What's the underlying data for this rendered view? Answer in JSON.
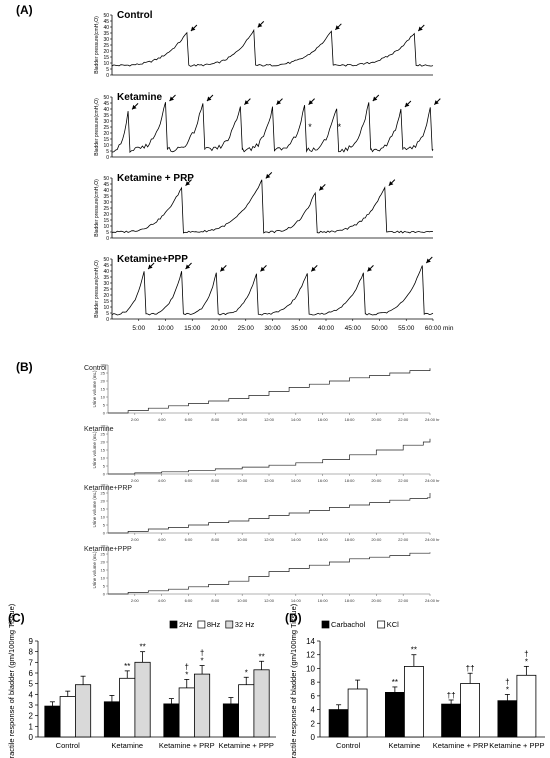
{
  "chart_data": [
    {
      "panel": "(A)",
      "type": "line",
      "x_axis": {
        "unit": "min",
        "ticks": [
          "5:00",
          "10:00",
          "15:00",
          "20:00",
          "25:00",
          "30:00",
          "35:00",
          "40:00",
          "45:00",
          "50:00",
          "55:00",
          "60:00"
        ],
        "tick_values": [
          5,
          10,
          15,
          20,
          25,
          30,
          35,
          40,
          45,
          50,
          55,
          60
        ],
        "range": [
          0,
          60
        ]
      },
      "y_axis": {
        "label": "Bladder pressure(cmH₂O)",
        "ticks": [
          0,
          5,
          10,
          15,
          20,
          25,
          30,
          35,
          40,
          45,
          50
        ],
        "range": [
          0,
          50
        ]
      },
      "series": [
        {
          "name": "Control",
          "peaks": [
            {
              "x": 14,
              "y": 35
            },
            {
              "x": 26.5,
              "y": 38
            },
            {
              "x": 41,
              "y": 36
            },
            {
              "x": 56.5,
              "y": 35
            }
          ],
          "baseline": 8,
          "arrows": [
            14,
            26.5,
            41,
            56.5
          ],
          "stars": []
        },
        {
          "name": "Ketamine",
          "peaks": [
            {
              "x": 3,
              "y": 38
            },
            {
              "x": 10,
              "y": 45
            },
            {
              "x": 17,
              "y": 45
            },
            {
              "x": 24,
              "y": 42
            },
            {
              "x": 30,
              "y": 42
            },
            {
              "x": 36,
              "y": 42
            },
            {
              "x": 42,
              "y": 42
            },
            {
              "x": 48,
              "y": 45
            },
            {
              "x": 54,
              "y": 40
            },
            {
              "x": 59.5,
              "y": 42
            }
          ],
          "baseline": 6,
          "arrows": [
            3,
            10,
            17,
            24,
            30,
            36,
            48,
            54,
            59.5
          ],
          "stars": [
            37,
            42.5
          ]
        },
        {
          "name": "Ketamine + PRP",
          "peaks": [
            {
              "x": 13,
              "y": 42
            },
            {
              "x": 28,
              "y": 48
            },
            {
              "x": 38,
              "y": 38
            },
            {
              "x": 51,
              "y": 42
            }
          ],
          "baseline": 5,
          "arrows": [
            13,
            28,
            38,
            51
          ],
          "stars": []
        },
        {
          "name": "Ketamine+PPP",
          "peaks": [
            {
              "x": 6,
              "y": 40
            },
            {
              "x": 13,
              "y": 40
            },
            {
              "x": 19.5,
              "y": 38
            },
            {
              "x": 27,
              "y": 38
            },
            {
              "x": 36.5,
              "y": 38
            },
            {
              "x": 47,
              "y": 38
            },
            {
              "x": 58,
              "y": 45
            }
          ],
          "baseline": 4,
          "arrows": [
            6,
            13,
            19.5,
            27,
            36.5,
            47,
            58
          ],
          "stars": []
        }
      ]
    },
    {
      "panel": "(B)",
      "type": "line",
      "x_axis": {
        "unit": "hr",
        "ticks": [
          "2:00",
          "4:00",
          "6:00",
          "8:00",
          "10:00",
          "12:00",
          "14:00",
          "16:00",
          "18:00",
          "20:00",
          "22:00",
          "24:00"
        ],
        "tick_values": [
          2,
          4,
          6,
          8,
          10,
          12,
          14,
          16,
          18,
          20,
          22,
          24
        ],
        "range": [
          0,
          24
        ]
      },
      "y_axis": {
        "label": "Urine volume (mL)",
        "ticks": [
          0,
          5,
          10,
          15,
          20,
          25,
          30
        ],
        "range": [
          0,
          30
        ]
      },
      "series": [
        {
          "name": "Control",
          "points": [
            [
              0,
              0
            ],
            [
              1.5,
              1.5
            ],
            [
              3,
              3
            ],
            [
              4.5,
              4.5
            ],
            [
              6,
              6
            ],
            [
              7.5,
              7.5
            ],
            [
              9,
              9
            ],
            [
              10.5,
              11
            ],
            [
              12,
              13.5
            ],
            [
              13.5,
              16
            ],
            [
              15,
              18
            ],
            [
              16.5,
              20
            ],
            [
              18,
              22
            ],
            [
              19.5,
              23.5
            ],
            [
              21,
              25
            ],
            [
              22.5,
              26.5
            ],
            [
              24,
              28
            ]
          ]
        },
        {
          "name": "Ketamine",
          "points": [
            [
              0,
              0
            ],
            [
              2,
              0.7
            ],
            [
              4,
              1.4
            ],
            [
              6,
              2.3
            ],
            [
              8,
              3.2
            ],
            [
              10,
              4.3
            ],
            [
              12,
              5.5
            ],
            [
              14,
              7
            ],
            [
              16,
              9
            ],
            [
              18,
              12
            ],
            [
              20,
              15
            ],
            [
              22,
              18
            ],
            [
              23.5,
              20
            ],
            [
              24,
              22
            ]
          ]
        },
        {
          "name": "Ketamine+PRP",
          "points": [
            [
              0,
              0
            ],
            [
              1.5,
              1
            ],
            [
              3,
              2.5
            ],
            [
              4.5,
              3.5
            ],
            [
              6,
              5
            ],
            [
              7.5,
              6.5
            ],
            [
              9,
              7.5
            ],
            [
              10.5,
              9
            ],
            [
              12,
              11
            ],
            [
              13.5,
              12.5
            ],
            [
              15,
              14
            ],
            [
              16.5,
              16
            ],
            [
              18,
              17.5
            ],
            [
              19.5,
              19
            ],
            [
              21,
              20.5
            ],
            [
              22.5,
              21.5
            ],
            [
              23.8,
              22
            ],
            [
              24,
              25
            ]
          ]
        },
        {
          "name": "Ketamine+PPP",
          "points": [
            [
              0,
              0
            ],
            [
              1.5,
              1
            ],
            [
              3,
              2
            ],
            [
              4.5,
              3
            ],
            [
              6,
              4.5
            ],
            [
              7.5,
              6
            ],
            [
              9,
              8
            ],
            [
              10.5,
              11
            ],
            [
              12,
              14
            ],
            [
              13.5,
              16
            ],
            [
              15,
              18
            ],
            [
              16.5,
              20
            ],
            [
              18,
              22
            ],
            [
              19.5,
              23
            ],
            [
              21,
              24
            ],
            [
              22.5,
              25.5
            ],
            [
              24,
              26
            ]
          ]
        }
      ]
    },
    {
      "panel": "(C)",
      "type": "bar",
      "ylabel": "Contractile response of bladder (gm/100mg Tissue)",
      "ylim": [
        0,
        9
      ],
      "yticks": [
        0,
        1,
        2,
        3,
        4,
        5,
        6,
        7,
        8,
        9
      ],
      "categories": [
        "Control",
        "Ketamine",
        "Ketamine + PRP",
        "Ketamine + PPP"
      ],
      "legend": {
        "placement": "top-right"
      },
      "series": [
        {
          "name": "2Hz",
          "color": "#000000",
          "values": [
            2.9,
            3.3,
            3.1,
            3.1
          ],
          "errors": [
            0.4,
            0.6,
            0.5,
            0.6
          ],
          "marks": [
            "",
            "",
            "",
            ""
          ]
        },
        {
          "name": "8Hz",
          "color": "#ffffff",
          "values": [
            3.8,
            5.5,
            4.6,
            4.9
          ],
          "errors": [
            0.5,
            0.7,
            0.8,
            0.7
          ],
          "marks": [
            "",
            "**",
            "*†",
            "*"
          ]
        },
        {
          "name": "32 Hz",
          "color": "#d9d9d9",
          "values": [
            4.9,
            7.0,
            5.9,
            6.3
          ],
          "errors": [
            0.8,
            1.0,
            0.8,
            0.8
          ],
          "marks": [
            "",
            "**",
            "*†",
            "**"
          ]
        }
      ]
    },
    {
      "panel": "(D)",
      "type": "bar",
      "ylabel": "Contractile response of bladder (gm/100mg Tissue)",
      "ylim": [
        0,
        14
      ],
      "yticks": [
        0,
        2,
        4,
        6,
        8,
        10,
        12,
        14
      ],
      "categories": [
        "Control",
        "Ketamine",
        "Ketamine + PRP",
        "Ketamine + PPP"
      ],
      "legend": {
        "placement": "top-left"
      },
      "series": [
        {
          "name": "Carbachol",
          "color": "#000000",
          "values": [
            4.0,
            6.5,
            4.8,
            5.3
          ],
          "errors": [
            0.7,
            0.8,
            0.6,
            0.9
          ],
          "marks": [
            "",
            "**",
            "††",
            "*†"
          ]
        },
        {
          "name": "KCl",
          "color": "#ffffff",
          "values": [
            7.0,
            10.3,
            7.8,
            9.0
          ],
          "errors": [
            1.3,
            1.7,
            1.5,
            1.3
          ],
          "marks": [
            "",
            "**",
            "††",
            "*†"
          ]
        }
      ]
    }
  ]
}
